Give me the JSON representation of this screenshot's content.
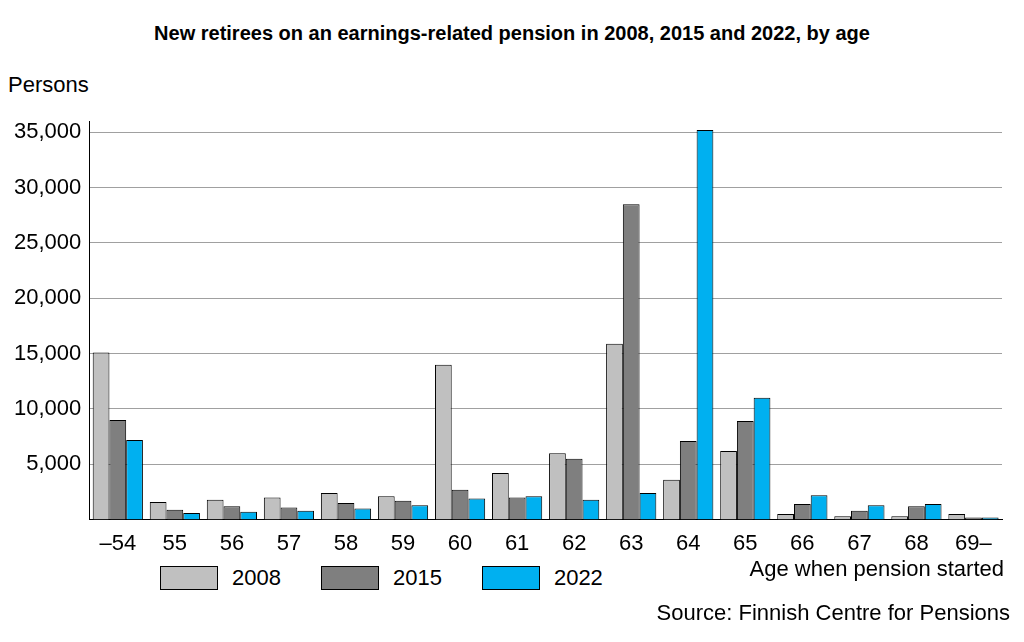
{
  "chart_data": {
    "type": "bar",
    "title": "New retirees on an earnings-related pension in 2008, 2015 and 2022, by age",
    "y_label": "Persons",
    "x_label": "Age when pension started",
    "annotations": [
      "Source: Finnish Centre for Pensions"
    ],
    "categories": [
      "–54",
      "55",
      "56",
      "57",
      "58",
      "59",
      "60",
      "61",
      "62",
      "63",
      "64",
      "65",
      "66",
      "67",
      "68",
      "69–"
    ],
    "series": [
      {
        "name": "2008",
        "color": "#c0c0c0",
        "values": [
          15100,
          1600,
          1800,
          2000,
          2400,
          2100,
          14000,
          4200,
          6000,
          15900,
          3600,
          6200,
          500,
          300,
          300,
          500
        ]
      },
      {
        "name": "2015",
        "color": "#7f7f7f",
        "values": [
          9000,
          900,
          1200,
          1100,
          1500,
          1700,
          2700,
          2000,
          5500,
          28500,
          7100,
          8900,
          1400,
          800,
          1200,
          200
        ]
      },
      {
        "name": "2022",
        "color": "#00b0f0",
        "values": [
          7200,
          600,
          700,
          800,
          1000,
          1300,
          1900,
          2100,
          1800,
          2400,
          35200,
          11000,
          2200,
          1300,
          1400,
          200
        ]
      }
    ],
    "ylim": [
      0,
      36000
    ],
    "yticks": [
      {
        "value": 5000,
        "label": "5,000"
      },
      {
        "value": 10000,
        "label": "10,000"
      },
      {
        "value": 15000,
        "label": "15,000"
      },
      {
        "value": 20000,
        "label": "20,000"
      },
      {
        "value": 25000,
        "label": "25,000"
      },
      {
        "value": 30000,
        "label": "30,000"
      },
      {
        "value": 35000,
        "label": "35,000"
      }
    ],
    "grid": true,
    "legend": "bottom"
  }
}
